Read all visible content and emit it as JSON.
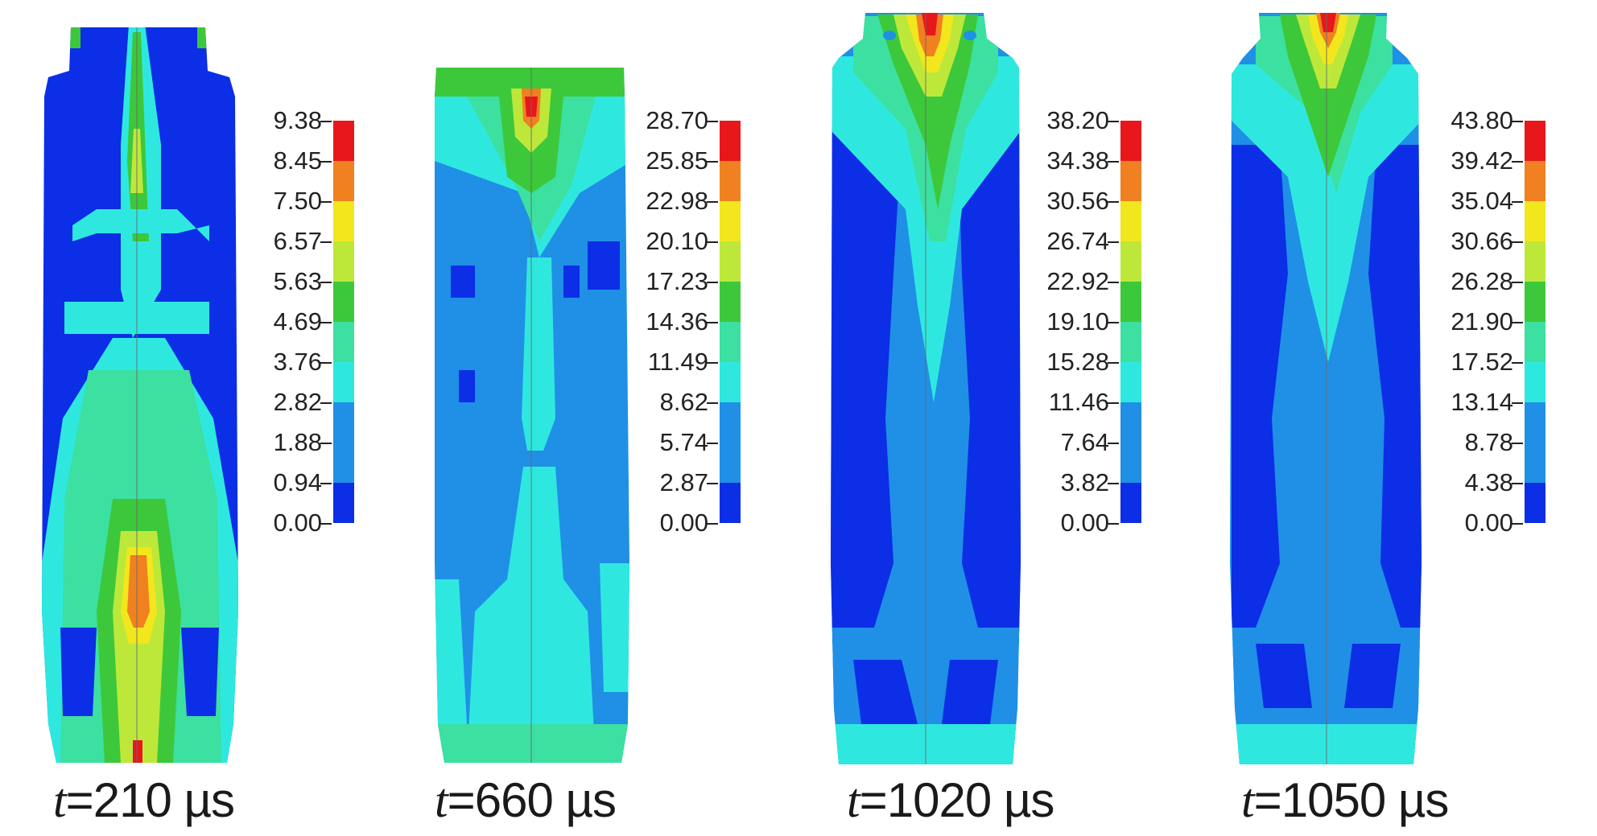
{
  "figure": {
    "panels": [
      {
        "caption_var": "t",
        "caption_rest": "=210 µs",
        "legend_ticks": [
          "9.38",
          "8.45",
          "7.50",
          "6.57",
          "5.63",
          "4.69",
          "3.76",
          "2.82",
          "1.88",
          "0.94",
          "0.00"
        ]
      },
      {
        "caption_var": "t",
        "caption_rest": "=660 µs",
        "legend_ticks": [
          "28.70",
          "25.85",
          "22.98",
          "20.10",
          "17.23",
          "14.36",
          "11.49",
          "8.62",
          "5.74",
          "2.87",
          "0.00"
        ]
      },
      {
        "caption_var": "t",
        "caption_rest": "=1020 µs",
        "legend_ticks": [
          "38.20",
          "34.38",
          "30.56",
          "26.74",
          "22.92",
          "19.10",
          "15.28",
          "11.46",
          "7.64",
          "3.82",
          "0.00"
        ]
      },
      {
        "caption_var": "t",
        "caption_rest": "=1050 µs",
        "legend_ticks": [
          "43.80",
          "39.42",
          "35.04",
          "30.66",
          "26.28",
          "21.90",
          "17.52",
          "13.14",
          "8.78",
          "4.38",
          "0.00"
        ]
      }
    ],
    "colormap": [
      "#e8171b",
      "#f08020",
      "#f2e61c",
      "#bde83a",
      "#3cc83a",
      "#3ce0a0",
      "#2ee8e0",
      "#1f90e6",
      "#0b2ee6"
    ]
  }
}
